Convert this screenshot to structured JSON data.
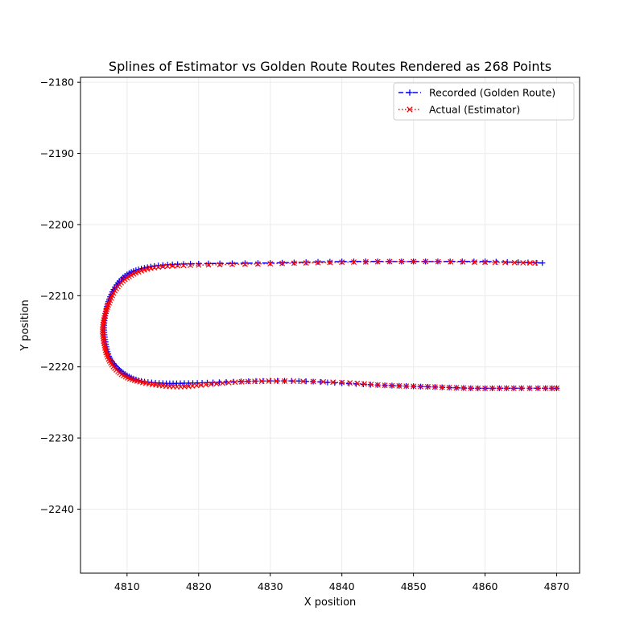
{
  "chart_data": {
    "type": "line",
    "title": "Splines of Estimator vs Golden Route Routes Rendered as 268 Points",
    "xlabel": "X position",
    "ylabel": "Y position",
    "xlim": [
      4803.5,
      4873.2
    ],
    "ylim": [
      -2249.0,
      -2179.3
    ],
    "xticks": [
      4810,
      4820,
      4830,
      4840,
      4850,
      4860,
      4870
    ],
    "yticks": [
      -2180,
      -2190,
      -2200,
      -2210,
      -2220,
      -2230,
      -2240
    ],
    "grid": true,
    "legend_position": "top-right",
    "series": [
      {
        "name": "Recorded (Golden Route)",
        "color": "#0000ff",
        "line_style": "dashed",
        "marker": "plus",
        "x": [
          4868.0,
          4860.0,
          4850.0,
          4840.0,
          4830.0,
          4820.0,
          4815.0,
          4812.0,
          4810.0,
          4808.5,
          4807.5,
          4807.0,
          4806.8,
          4807.0,
          4807.5,
          4808.5,
          4810.0,
          4812.0,
          4815.0,
          4818.0,
          4822.0,
          4828.0,
          4834.0,
          4840.0,
          4846.0,
          4852.0,
          4858.0,
          4864.0,
          4870.0
        ],
        "y": [
          -2205.4,
          -2205.2,
          -2205.2,
          -2205.2,
          -2205.4,
          -2205.5,
          -2205.7,
          -2206.2,
          -2207.0,
          -2208.5,
          -2210.5,
          -2212.5,
          -2214.5,
          -2216.5,
          -2218.5,
          -2220.0,
          -2221.2,
          -2222.0,
          -2222.3,
          -2222.3,
          -2222.2,
          -2222.0,
          -2222.0,
          -2222.3,
          -2222.6,
          -2222.8,
          -2223.0,
          -2223.0,
          -2223.0
        ]
      },
      {
        "name": "Actual (Estimator)",
        "color": "#ff0000",
        "line_style": "dotted",
        "marker": "x",
        "x": [
          4867.0,
          4860.0,
          4850.0,
          4840.0,
          4830.0,
          4820.0,
          4815.0,
          4812.0,
          4810.0,
          4808.5,
          4807.5,
          4806.9,
          4806.6,
          4806.8,
          4807.3,
          4808.3,
          4809.8,
          4811.8,
          4814.5,
          4817.5,
          4821.0,
          4826.0,
          4832.0,
          4840.0,
          4846.0,
          4852.0,
          4858.0,
          4864.0,
          4870.0
        ],
        "y": [
          -2205.4,
          -2205.3,
          -2205.2,
          -2205.3,
          -2205.5,
          -2205.7,
          -2205.9,
          -2206.5,
          -2207.5,
          -2209.0,
          -2211.0,
          -2212.8,
          -2214.7,
          -2216.7,
          -2218.6,
          -2220.2,
          -2221.4,
          -2222.1,
          -2222.6,
          -2222.8,
          -2222.5,
          -2222.1,
          -2222.0,
          -2222.2,
          -2222.6,
          -2222.8,
          -2223.0,
          -2223.0,
          -2223.0
        ]
      }
    ]
  }
}
